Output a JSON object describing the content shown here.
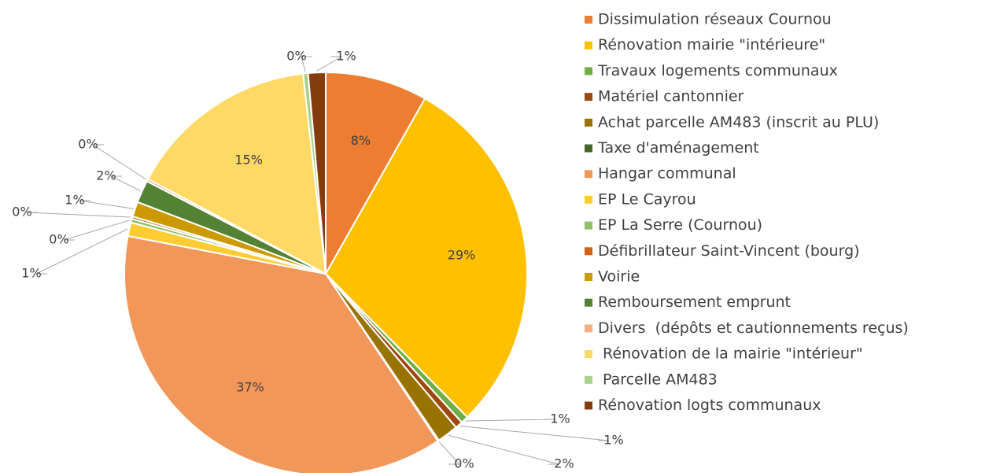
{
  "chart_data": {
    "type": "pie",
    "categories": [
      "Dissimulation réseaux Cournou",
      "Rénovation mairie \"intérieure\"",
      "Travaux logements communaux",
      "Matériel cantonnier",
      "Achat parcelle AM483 (inscrit au PLU)",
      "Taxe d'aménagement",
      "Hangar communal",
      "EP Le Cayrou",
      "EP La Serre (Cournou)",
      "Défibrillateur Saint-Vincent (bourg)",
      "Voirie",
      "Remboursement emprunt",
      "Divers  (dépôts et cautionnements reçus)",
      " Rénovation de la mairie \"intérieur\"",
      " Parcelle AM483",
      "Rénovation logts communaux"
    ],
    "values": [
      8.2,
      29.4,
      0.6,
      0.6,
      1.7,
      0.1,
      37.4,
      1.1,
      0.3,
      0.2,
      1.2,
      1.8,
      0.2,
      15.4,
      0.4,
      1.4
    ],
    "value_labels": [
      "8%",
      "29%",
      "1%",
      "1%",
      "2%",
      "0%",
      "37%",
      "1%",
      "0%",
      "0%",
      "1%",
      "2%",
      "0%",
      "15%",
      "0%",
      "1%"
    ],
    "colors": [
      "#ed7d31",
      "#ffc000",
      "#70ad47",
      "#9e480e",
      "#997300",
      "#43682b",
      "#f1975a",
      "#ffcd33",
      "#8cc168",
      "#d26012",
      "#cc9a00",
      "#548235",
      "#f4b183",
      "#ffd966",
      "#a9d18e",
      "#843c0c"
    ],
    "legend": "right"
  }
}
